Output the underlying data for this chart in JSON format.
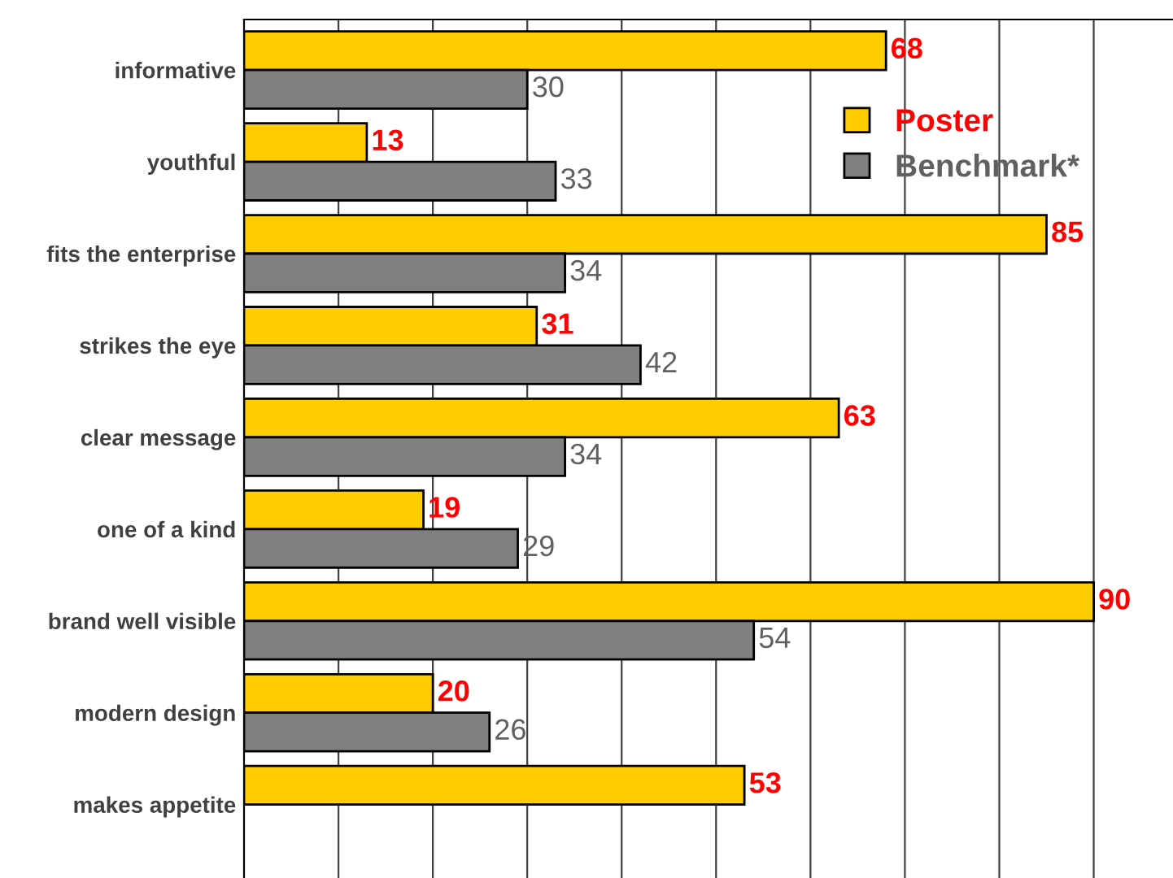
{
  "chart_data": {
    "type": "bar",
    "orientation": "horizontal",
    "categories": [
      "informative",
      "youthful",
      "fits the enterprise",
      "strikes the eye",
      "clear message",
      "one of a kind",
      "brand well visible",
      "modern design",
      "makes appetite"
    ],
    "series": [
      {
        "name": "Poster",
        "color": "#ffcc00",
        "values": [
          68,
          13,
          85,
          31,
          63,
          19,
          90,
          20,
          53
        ]
      },
      {
        "name": "Benchmark*",
        "color": "#808080",
        "values": [
          30,
          33,
          34,
          42,
          34,
          29,
          54,
          26,
          null
        ]
      }
    ],
    "xlim": [
      0,
      98.4
    ],
    "xticks": [
      {
        "value": 10,
        "label": null
      },
      {
        "value": 20,
        "label": null
      },
      {
        "value": 30,
        "label": null
      },
      {
        "value": 40,
        "label": null
      },
      {
        "value": 50,
        "label": null
      },
      {
        "value": 60,
        "label": null
      },
      {
        "value": 70,
        "label": null
      },
      {
        "value": 80,
        "label": null
      },
      {
        "value": 90,
        "label": null
      }
    ],
    "grid": "x",
    "legend": "top right",
    "data_labels": true,
    "tick_labels": "y"
  }
}
